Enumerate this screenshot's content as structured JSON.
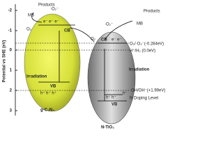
{
  "axis": {
    "label": "Potential vs SHE (eV)",
    "ticks": [
      "-2",
      "-1",
      "0",
      "1",
      "2",
      "3"
    ]
  },
  "left": {
    "products": "Products",
    "mb": "MB",
    "radical": "·O₂⁻",
    "o2": "O₂",
    "cb": "CB",
    "electrons": "e⁻  e⁻  e⁻",
    "irradiation": "Irradiation",
    "vb": "VB",
    "holes": "h⁺  h⁺  h⁺",
    "name": "g-C₃N₄"
  },
  "right": {
    "products": "Products",
    "mb": "MB",
    "radical": "·O₂⁻",
    "o2": "O₂",
    "cb": "CB",
    "electrons": "e⁻  e⁻",
    "irradiation": "Irradiation",
    "vb": "VB",
    "holes": "h⁺  h⁺",
    "doping_hole": "h⁺",
    "name": "N-TiO₂"
  },
  "levels": {
    "o2_radical": "O₂/·O₂⁻(-0.284eV)",
    "h2": "H⁺/H₂ (0.0eV)",
    "oh": "·OH/OH⁻(+1.99eV)",
    "n_doping": "N Doping Level"
  }
}
